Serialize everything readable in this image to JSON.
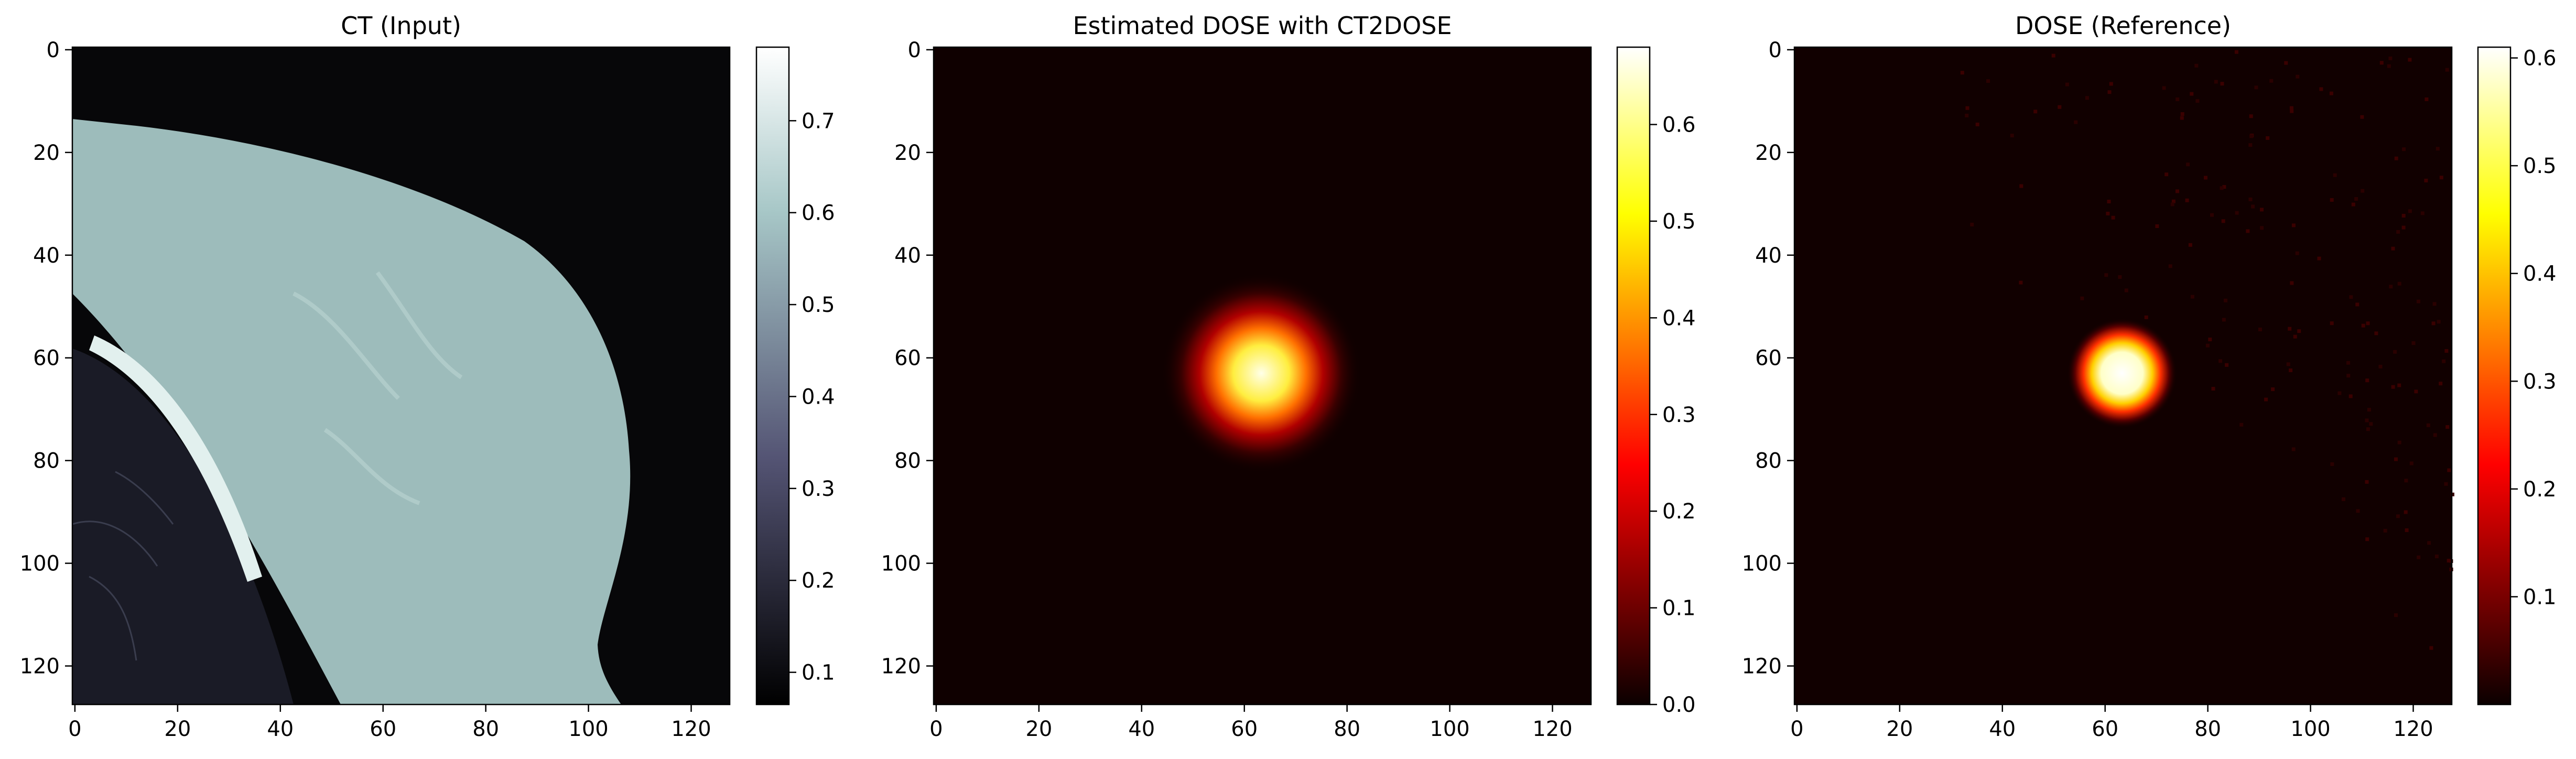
{
  "figure": {
    "panels": [
      {
        "title": "CT (Input)",
        "colormap": "bone",
        "x_ticks": [
          "0",
          "20",
          "40",
          "60",
          "80",
          "100",
          "120"
        ],
        "y_ticks": [
          "0",
          "20",
          "40",
          "60",
          "80",
          "100",
          "120"
        ],
        "colorbar_ticks": [
          "0.1",
          "0.2",
          "0.3",
          "0.4",
          "0.5",
          "0.6",
          "0.7"
        ]
      },
      {
        "title": "Estimated DOSE with CT2DOSE",
        "colormap": "hot",
        "x_ticks": [
          "0",
          "20",
          "40",
          "60",
          "80",
          "100",
          "120"
        ],
        "y_ticks": [
          "0",
          "20",
          "40",
          "60",
          "80",
          "100",
          "120"
        ],
        "colorbar_ticks": [
          "0.0",
          "0.1",
          "0.2",
          "0.3",
          "0.4",
          "0.5",
          "0.6"
        ]
      },
      {
        "title": "DOSE (Reference)",
        "colormap": "hot",
        "x_ticks": [
          "0",
          "20",
          "40",
          "60",
          "80",
          "100",
          "120"
        ],
        "y_ticks": [
          "0",
          "20",
          "40",
          "60",
          "80",
          "100",
          "120"
        ],
        "colorbar_ticks": [
          "0.1",
          "0.2",
          "0.3",
          "0.4",
          "0.5",
          "0.6"
        ]
      }
    ]
  },
  "chart_data": [
    {
      "type": "heatmap",
      "title": "CT (Input)",
      "xlim": [
        -0.5,
        127.5
      ],
      "ylim": [
        127.5,
        -0.5
      ],
      "x_tick_values": [
        0,
        20,
        40,
        60,
        80,
        100,
        120
      ],
      "y_tick_values": [
        0,
        20,
        40,
        60,
        80,
        100,
        120
      ],
      "colorbar_range": [
        0.065,
        0.78
      ],
      "colorbar_tick_values": [
        0.1,
        0.2,
        0.3,
        0.4,
        0.5,
        0.6,
        0.7
      ],
      "colormap": "bone",
      "description_values": {
        "air": 0.07,
        "soft_tissue": 0.6,
        "lung": 0.15,
        "rib": 0.75
      }
    },
    {
      "type": "heatmap",
      "title": "Estimated DOSE with CT2DOSE",
      "xlim": [
        -0.5,
        127.5
      ],
      "ylim": [
        127.5,
        -0.5
      ],
      "x_tick_values": [
        0,
        20,
        40,
        60,
        80,
        100,
        120
      ],
      "y_tick_values": [
        0,
        20,
        40,
        60,
        80,
        100,
        120
      ],
      "colorbar_range": [
        0.0,
        0.68
      ],
      "colorbar_tick_values": [
        0.0,
        0.1,
        0.2,
        0.3,
        0.4,
        0.5,
        0.6
      ],
      "colormap": "hot",
      "hotspot": {
        "x": 63.5,
        "y": 63.5,
        "peak": 0.68
      }
    },
    {
      "type": "heatmap",
      "title": "DOSE (Reference)",
      "xlim": [
        -0.5,
        127.5
      ],
      "ylim": [
        127.5,
        -0.5
      ],
      "x_tick_values": [
        0,
        20,
        40,
        60,
        80,
        100,
        120
      ],
      "y_tick_values": [
        0,
        20,
        40,
        60,
        80,
        100,
        120
      ],
      "colorbar_range": [
        0.0,
        0.61
      ],
      "colorbar_tick_values": [
        0.1,
        0.2,
        0.3,
        0.4,
        0.5,
        0.6
      ],
      "colormap": "hot",
      "hotspot": {
        "x": 63.5,
        "y": 63.5,
        "peak": 0.61
      }
    }
  ]
}
